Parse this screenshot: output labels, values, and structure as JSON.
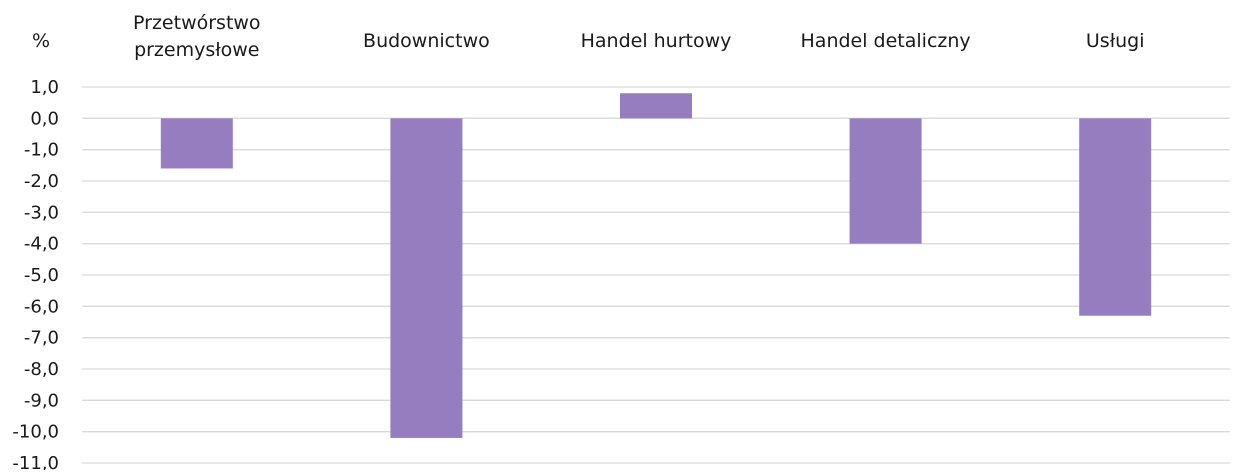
{
  "chart_data": {
    "type": "bar",
    "unit_label": "%",
    "categories": [
      "Przetwórstwo przemysłowe",
      "Budownictwo",
      "Handel hurtowy",
      "Handel detaliczny",
      "Usługi"
    ],
    "category_lines": [
      [
        "Przetwórstwo",
        "przemysłowe"
      ],
      [
        "Budownictwo"
      ],
      [
        "Handel hurtowy"
      ],
      [
        "Handel detaliczny"
      ],
      [
        "Usługi"
      ]
    ],
    "values": [
      -1.6,
      -10.2,
      0.8,
      -4.0,
      -6.3
    ],
    "ylim": [
      -11,
      1
    ],
    "yticks": [
      "1,0",
      "0,0",
      "-1,0",
      "-2,0",
      "-3,0",
      "-4,0",
      "-5,0",
      "-6,0",
      "-7,0",
      "-8,0",
      "-9,0",
      "-10,0",
      "-11,0"
    ],
    "legend": "none",
    "grid": true,
    "colors": {
      "bar": "#957dc0",
      "grid": "#d9d9d9",
      "text": "#1a1a1a"
    }
  }
}
